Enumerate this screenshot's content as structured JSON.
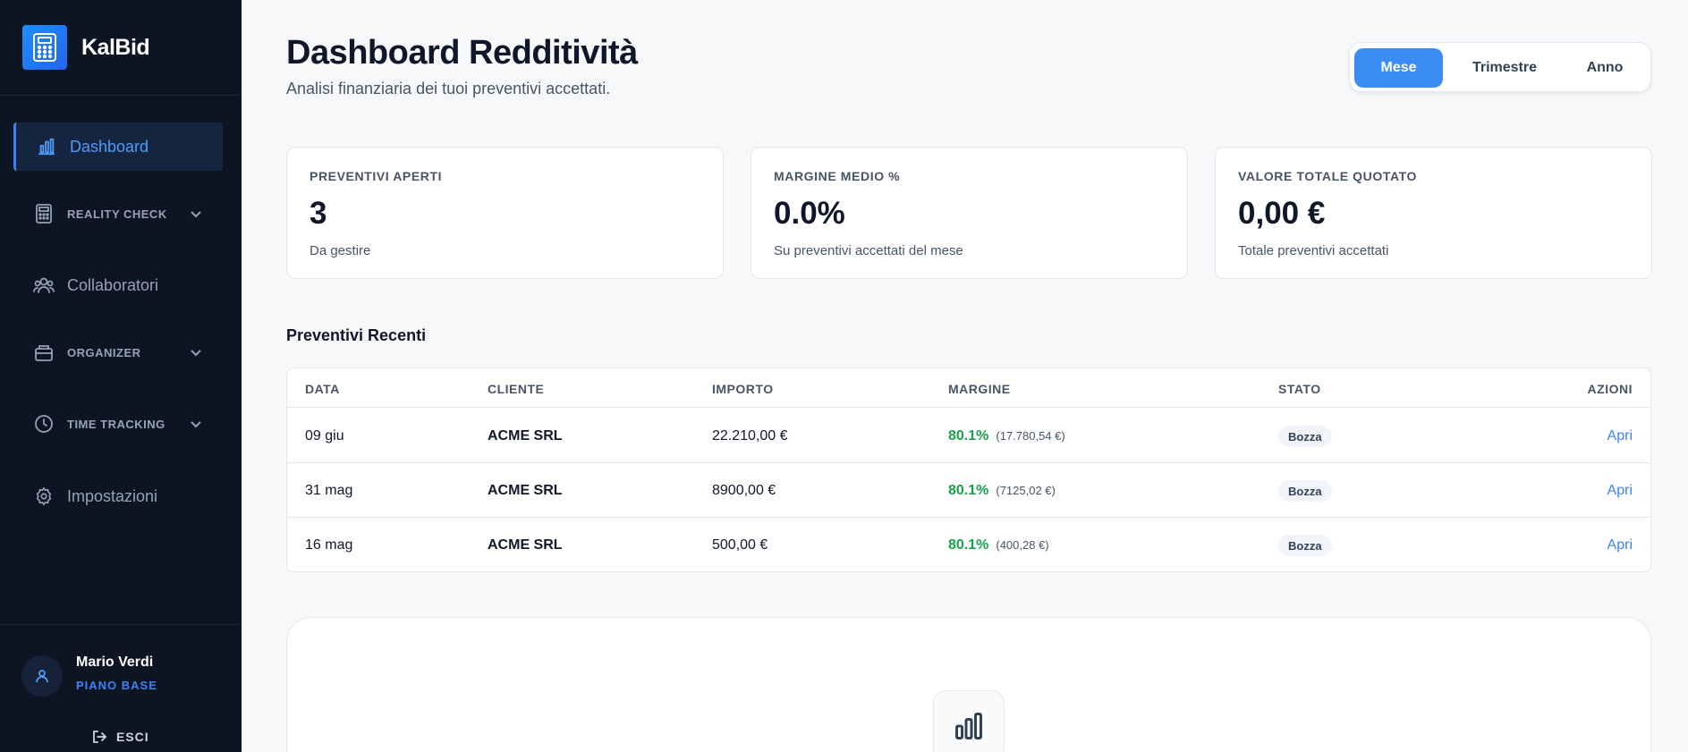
{
  "brand": {
    "name": "KalBid",
    "accent": "#3b82f6"
  },
  "sidebar": {
    "items": [
      {
        "label": "Dashboard",
        "icon": "bar-chart-icon",
        "active": true
      },
      {
        "label": "REALITY CHECK",
        "icon": "calculator-icon",
        "expandable": true
      },
      {
        "label": "Collaboratori",
        "icon": "users-icon"
      },
      {
        "label": "ORGANIZER",
        "icon": "briefcase-icon",
        "expandable": true
      },
      {
        "label": "TIME TRACKING",
        "icon": "clock-icon",
        "expandable": true
      },
      {
        "label": "Impostazioni",
        "icon": "gear-icon"
      }
    ],
    "user": {
      "name": "Mario Verdi",
      "plan": "PIANO BASE"
    },
    "logout_label": "ESCI"
  },
  "header": {
    "title": "Dashboard Redditività",
    "subtitle": "Analisi finanziaria dei tuoi preventivi accettati."
  },
  "period_selector": {
    "options": [
      "Mese",
      "Trimestre",
      "Anno"
    ],
    "selected": "Mese"
  },
  "stats": [
    {
      "label": "PREVENTIVI APERTI",
      "value": "3",
      "note": "Da gestire"
    },
    {
      "label": "MARGINE MEDIO %",
      "value": "0.0%",
      "note": "Su preventivi accettati del mese"
    },
    {
      "label": "VALORE TOTALE QUOTATO",
      "value": "0,00 €",
      "note": "Totale preventivi accettati"
    }
  ],
  "recent": {
    "title": "Preventivi Recenti",
    "columns": [
      "DATA",
      "CLIENTE",
      "IMPORTO",
      "MARGINE",
      "STATO",
      "AZIONI"
    ],
    "rows": [
      {
        "date": "09 giu",
        "client": "ACME SRL",
        "amount": "22.210,00 €",
        "margin_pct": "80.1%",
        "margin_abs": "(17.780,54 €)",
        "status": "Bozza",
        "action": "Apri"
      },
      {
        "date": "31 mag",
        "client": "ACME SRL",
        "amount": "8900,00 €",
        "margin_pct": "80.1%",
        "margin_abs": "(7125,02 €)",
        "status": "Bozza",
        "action": "Apri"
      },
      {
        "date": "16 mag",
        "client": "ACME SRL",
        "amount": "500,00 €",
        "margin_pct": "80.1%",
        "margin_abs": "(400,28 €)",
        "status": "Bozza",
        "action": "Apri"
      }
    ]
  },
  "colors": {
    "sidebar_bg": "#0d1422",
    "accent": "#3b82f6",
    "margin_positive": "#16a34a",
    "page_bg": "#f7f8fa"
  }
}
